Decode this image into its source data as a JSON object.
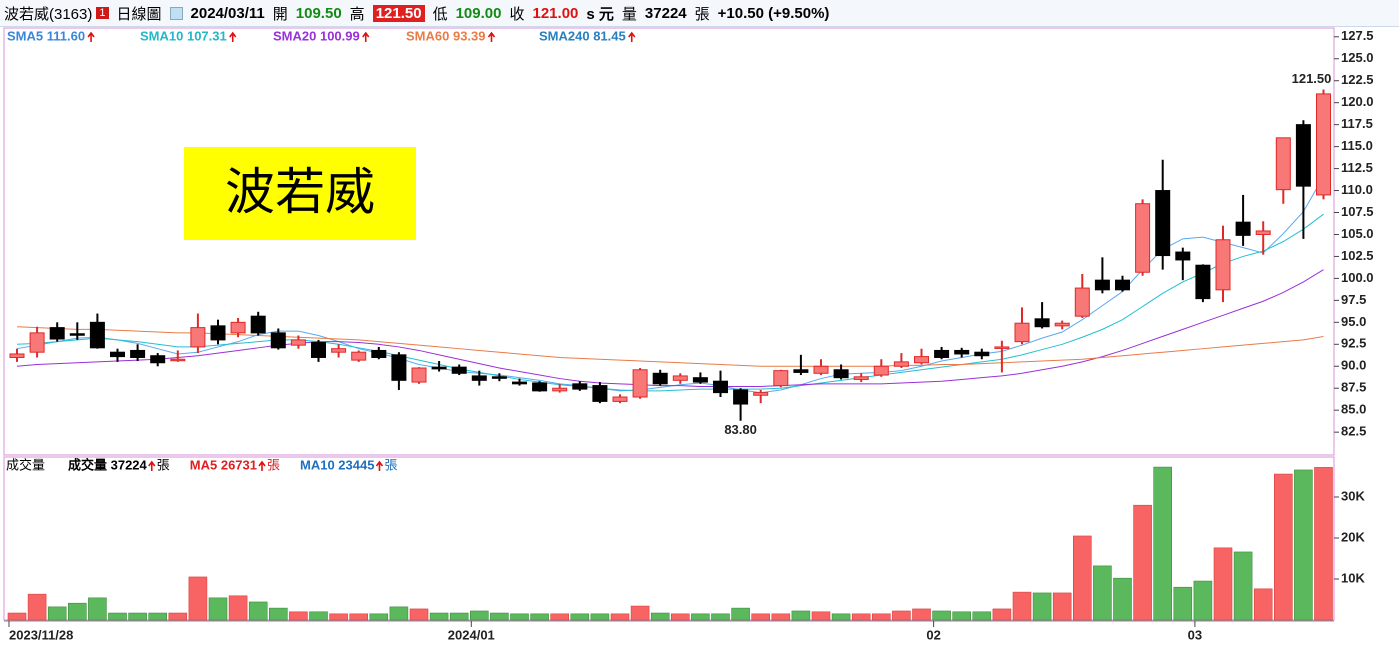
{
  "header": {
    "stock": "波若威(3163)",
    "badge": "1",
    "period": "日線圖",
    "date": "2024/03/11",
    "open_label": "開",
    "open": "109.50",
    "high_label": "高",
    "high": "121.50",
    "low_label": "低",
    "low": "109.00",
    "close_label": "收",
    "close": "121.00",
    "unit": "s 元",
    "volume_label": "量",
    "volume": "37224",
    "volume_unit": "張",
    "change": "+10.50 (+9.50%)"
  },
  "chart_data": [
    {
      "type": "candlestick",
      "watermark": "波若威",
      "high_mark": "121.50",
      "low_mark": "83.80",
      "up_color": "#f87878",
      "up_edge": "#e02828",
      "down_color": "#000000",
      "ylim": [
        79.9,
        128.5
      ],
      "yticks": [
        82.5,
        {
          "value": 85,
          "label": "85.0"
        },
        87.5,
        {
          "value": 90,
          "label": "90.0"
        },
        92.5,
        {
          "value": 95,
          "label": "95.0"
        },
        97.5,
        {
          "value": 100,
          "label": "100.0"
        },
        102.5,
        {
          "value": 105,
          "label": "105.0"
        },
        107.5,
        {
          "value": 110,
          "label": "110.0"
        },
        112.5,
        {
          "value": 115,
          "label": "115.0"
        },
        117.5,
        {
          "value": 120,
          "label": "120.0"
        },
        122.5,
        {
          "value": 125,
          "label": "125.0"
        },
        127.5
      ],
      "open": [
        91.0,
        91.6,
        94.4,
        93.7,
        95.0,
        91.6,
        91.8,
        91.2,
        90.7,
        92.2,
        94.6,
        93.8,
        95.7,
        93.8,
        92.4,
        92.7,
        91.6,
        90.7,
        91.8,
        91.3,
        88.2,
        89.9,
        89.9,
        88.9,
        88.8,
        88.2,
        88.1,
        87.2,
        88.0,
        87.8,
        86.0,
        86.5,
        89.2,
        88.4,
        88.7,
        88.3,
        87.3,
        86.7,
        87.8,
        89.6,
        89.2,
        89.6,
        88.5,
        89.0,
        90.0,
        90.4,
        91.8,
        91.8,
        91.6,
        92.1,
        92.8,
        95.4,
        94.6,
        95.7,
        99.8,
        99.8,
        100.7,
        110.0,
        103.0,
        101.5,
        98.7,
        106.4,
        105.0,
        110.1,
        117.5,
        109.5
      ],
      "high": [
        92.0,
        94.5,
        95.0,
        95.0,
        96.0,
        92.0,
        92.5,
        91.5,
        91.8,
        96.0,
        95.3,
        95.5,
        96.2,
        94.3,
        93.5,
        93.0,
        92.5,
        91.8,
        92.2,
        91.6,
        89.9,
        90.6,
        90.2,
        89.5,
        89.2,
        88.6,
        88.3,
        88.0,
        88.3,
        88.2,
        86.8,
        89.8,
        89.6,
        89.2,
        89.3,
        89.5,
        87.5,
        87.3,
        89.6,
        91.3,
        90.8,
        90.2,
        89.2,
        90.8,
        91.5,
        92.0,
        92.2,
        92.1,
        92.0,
        92.9,
        96.7,
        97.3,
        95.2,
        100.5,
        102.4,
        100.3,
        109.0,
        113.5,
        103.5,
        101.6,
        106.0,
        109.5,
        106.5,
        116.0,
        118.0,
        121.5
      ],
      "low": [
        90.5,
        91.0,
        92.8,
        93.0,
        92.0,
        90.5,
        90.6,
        90.0,
        90.5,
        91.5,
        92.5,
        93.3,
        93.5,
        91.9,
        92.0,
        90.5,
        91.0,
        90.5,
        90.8,
        87.3,
        88.0,
        89.4,
        89.0,
        87.8,
        88.3,
        87.8,
        87.1,
        87.0,
        87.2,
        85.8,
        85.8,
        86.3,
        87.8,
        88.0,
        88.0,
        86.5,
        83.8,
        85.8,
        87.6,
        89.0,
        89.0,
        88.5,
        88.2,
        88.8,
        89.8,
        90.2,
        90.8,
        91.0,
        90.8,
        89.3,
        92.5,
        94.3,
        94.2,
        95.5,
        98.3,
        98.5,
        100.3,
        101.0,
        99.8,
        97.3,
        97.3,
        103.7,
        102.7,
        108.5,
        104.5,
        109.0
      ],
      "close": [
        91.4,
        93.8,
        93.1,
        93.6,
        92.1,
        91.1,
        91.0,
        90.4,
        90.8,
        94.4,
        93.0,
        95.0,
        93.8,
        92.1,
        93.0,
        91.0,
        92.0,
        91.6,
        91.0,
        88.4,
        89.8,
        89.7,
        89.2,
        88.4,
        88.7,
        88.0,
        87.2,
        87.5,
        87.4,
        86.0,
        86.5,
        89.6,
        88.0,
        88.9,
        88.2,
        87.0,
        85.7,
        87.0,
        89.5,
        89.3,
        90.0,
        88.7,
        88.8,
        90.0,
        90.5,
        91.1,
        91.0,
        91.4,
        91.2,
        92.2,
        94.9,
        94.5,
        94.9,
        98.9,
        98.7,
        98.7,
        108.5,
        102.6,
        102.1,
        97.7,
        104.4,
        104.9,
        105.4,
        116.0,
        110.5,
        121.0
      ],
      "series": [
        {
          "name": "SMA5 111.60",
          "color": "#3a86d8",
          "line": "#5aa8f0",
          "values": [
            92.0,
            92.4,
            92.8,
            93.2,
            93.3,
            93.0,
            92.6,
            92.0,
            91.4,
            91.6,
            92.2,
            92.8,
            93.6,
            94.0,
            94.0,
            93.5,
            92.8,
            92.0,
            91.5,
            90.9,
            90.2,
            89.8,
            89.4,
            89.2,
            89.0,
            88.7,
            88.4,
            88.0,
            87.8,
            87.5,
            87.2,
            87.3,
            87.6,
            87.9,
            88.1,
            87.8,
            87.3,
            87.0,
            87.3,
            87.9,
            88.6,
            89.1,
            89.2,
            89.3,
            89.5,
            90.0,
            90.6,
            91.0,
            91.4,
            91.7,
            92.4,
            93.2,
            93.9,
            95.3,
            96.9,
            98.5,
            101.0,
            103.3,
            104.5,
            104.7,
            104.1,
            103.5,
            102.9,
            105.1,
            107.6,
            111.6
          ]
        },
        {
          "name": "SMA10 107.31",
          "color": "#22b8c8",
          "line": "#22c0d0",
          "values": [
            92.5,
            92.6,
            92.8,
            93.0,
            93.2,
            93.0,
            92.8,
            92.5,
            92.2,
            92.2,
            92.4,
            92.6,
            92.8,
            93.0,
            93.0,
            92.8,
            92.5,
            92.1,
            91.7,
            91.2,
            90.7,
            90.2,
            89.7,
            89.3,
            88.9,
            88.5,
            88.2,
            87.9,
            87.7,
            87.5,
            87.3,
            87.2,
            87.2,
            87.3,
            87.4,
            87.4,
            87.4,
            87.4,
            87.5,
            87.8,
            88.1,
            88.4,
            88.7,
            89.0,
            89.3,
            89.6,
            89.9,
            90.2,
            90.5,
            90.8,
            91.3,
            91.9,
            92.5,
            93.3,
            94.2,
            95.3,
            96.8,
            98.3,
            99.6,
            100.6,
            101.7,
            102.5,
            103.1,
            104.2,
            105.6,
            107.31
          ]
        },
        {
          "name": "SMA20 100.99",
          "color": "#9a30d8",
          "line": "#9a30d8",
          "values": [
            90.0,
            90.2,
            90.3,
            90.4,
            90.5,
            90.6,
            90.7,
            90.8,
            91.0,
            91.2,
            91.5,
            91.8,
            92.1,
            92.4,
            92.6,
            92.8,
            92.8,
            92.7,
            92.5,
            92.2,
            91.8,
            91.3,
            90.8,
            90.3,
            89.8,
            89.4,
            89.0,
            88.6,
            88.3,
            88.1,
            88.0,
            87.9,
            87.8,
            87.8,
            87.7,
            87.7,
            87.7,
            87.7,
            87.8,
            87.9,
            88.0,
            88.0,
            88.0,
            88.0,
            88.1,
            88.2,
            88.3,
            88.5,
            88.7,
            88.9,
            89.2,
            89.6,
            90.0,
            90.5,
            91.1,
            91.8,
            92.6,
            93.4,
            94.2,
            95.0,
            95.8,
            96.6,
            97.4,
            98.4,
            99.6,
            100.99
          ]
        },
        {
          "name": "SMA60 93.39",
          "color": "#e87c48",
          "line": "#e87c48",
          "values": [
            94.5,
            94.4,
            94.3,
            94.2,
            94.2,
            94.1,
            94.0,
            93.9,
            93.8,
            93.8,
            93.7,
            93.6,
            93.5,
            93.4,
            93.3,
            93.2,
            93.1,
            93.0,
            92.8,
            92.6,
            92.4,
            92.2,
            92.0,
            91.8,
            91.6,
            91.4,
            91.2,
            91.0,
            90.9,
            90.8,
            90.7,
            90.6,
            90.5,
            90.4,
            90.3,
            90.2,
            90.1,
            90.0,
            90.0,
            90.0,
            90.0,
            90.0,
            90.0,
            90.0,
            90.1,
            90.1,
            90.2,
            90.2,
            90.3,
            90.4,
            90.5,
            90.6,
            90.7,
            90.8,
            91.0,
            91.2,
            91.4,
            91.6,
            91.8,
            92.0,
            92.2,
            92.4,
            92.6,
            92.8,
            93.0,
            93.39
          ]
        },
        {
          "name": "SMA240 81.45",
          "color": "#2a7fc0"
        }
      ]
    },
    {
      "type": "bar",
      "title": "成交量",
      "up_color": "#f86464",
      "down_color": "#5cb85c",
      "legend": [
        {
          "text": "成交量 37224",
          "unit": "張",
          "color": "#000000"
        },
        {
          "text": "MA5 26731",
          "unit": "張",
          "color": "#e02020"
        },
        {
          "text": "MA10 23445",
          "unit": "張",
          "color": "#1f6fc0"
        }
      ],
      "categories": [
        "2023/11/28",
        null,
        null,
        null,
        null,
        null,
        null,
        null,
        null,
        null,
        null,
        null,
        null,
        null,
        null,
        null,
        null,
        null,
        null,
        null,
        null,
        null,
        null,
        "2024/01",
        null,
        null,
        null,
        null,
        null,
        null,
        null,
        null,
        null,
        null,
        null,
        null,
        null,
        null,
        null,
        null,
        null,
        null,
        null,
        null,
        null,
        null,
        "02",
        null,
        null,
        null,
        null,
        null,
        null,
        null,
        null,
        null,
        null,
        null,
        null,
        "03",
        null,
        null,
        null,
        null,
        null,
        null
      ],
      "values": [
        1700,
        6300,
        3200,
        4100,
        5400,
        1700,
        1700,
        1700,
        1700,
        10500,
        5400,
        5900,
        4400,
        2900,
        2000,
        2000,
        1500,
        1500,
        1500,
        3200,
        2700,
        1700,
        1700,
        2200,
        1700,
        1500,
        1500,
        1500,
        1500,
        1500,
        1500,
        3400,
        1700,
        1500,
        1500,
        1500,
        2900,
        1500,
        1500,
        2200,
        2000,
        1500,
        1500,
        1500,
        2200,
        2700,
        2200,
        2000,
        2000,
        2700,
        6800,
        6600,
        6600,
        20500,
        13200,
        10200,
        28000,
        37300,
        8000,
        9500,
        17600,
        16600,
        7600,
        35600,
        36600,
        37224
      ],
      "ylim": [
        0,
        39760
      ],
      "yticks": [
        {
          "value": 10000,
          "label": "10K"
        },
        {
          "value": 20000,
          "label": "20K"
        },
        {
          "value": 30000,
          "label": "30K"
        }
      ]
    }
  ]
}
